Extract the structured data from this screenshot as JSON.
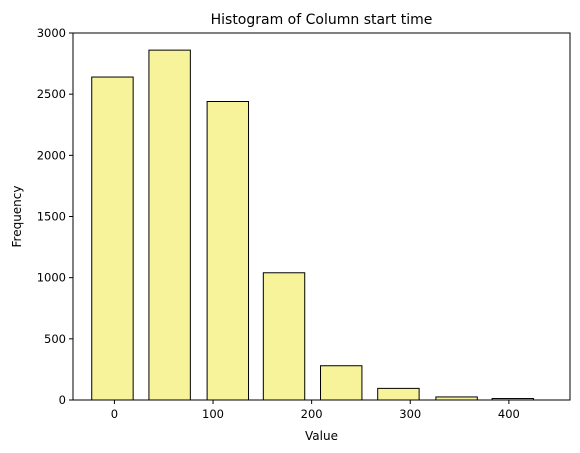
{
  "chart_data": {
    "type": "bar",
    "title": "Histogram of Column start time",
    "xlabel": "Value",
    "ylabel": "Frequency",
    "bars": [
      {
        "center": -2,
        "width": 42,
        "value": 2640
      },
      {
        "center": 56,
        "width": 42,
        "value": 2860
      },
      {
        "center": 115,
        "width": 42,
        "value": 2440
      },
      {
        "center": 172,
        "width": 42,
        "value": 1040
      },
      {
        "center": 230,
        "width": 42,
        "value": 280
      },
      {
        "center": 288,
        "width": 42,
        "value": 95
      },
      {
        "center": 347,
        "width": 42,
        "value": 25
      },
      {
        "center": 404,
        "width": 42,
        "value": 12
      }
    ],
    "xlim": [
      -42,
      462
    ],
    "ylim": [
      0,
      3000
    ],
    "xticks": [
      0,
      100,
      200,
      300,
      400
    ],
    "yticks": [
      0,
      500,
      1000,
      1500,
      2000,
      2500,
      3000
    ],
    "bar_color": "#f7f39a",
    "edge_color": "#000000",
    "grid": false
  }
}
